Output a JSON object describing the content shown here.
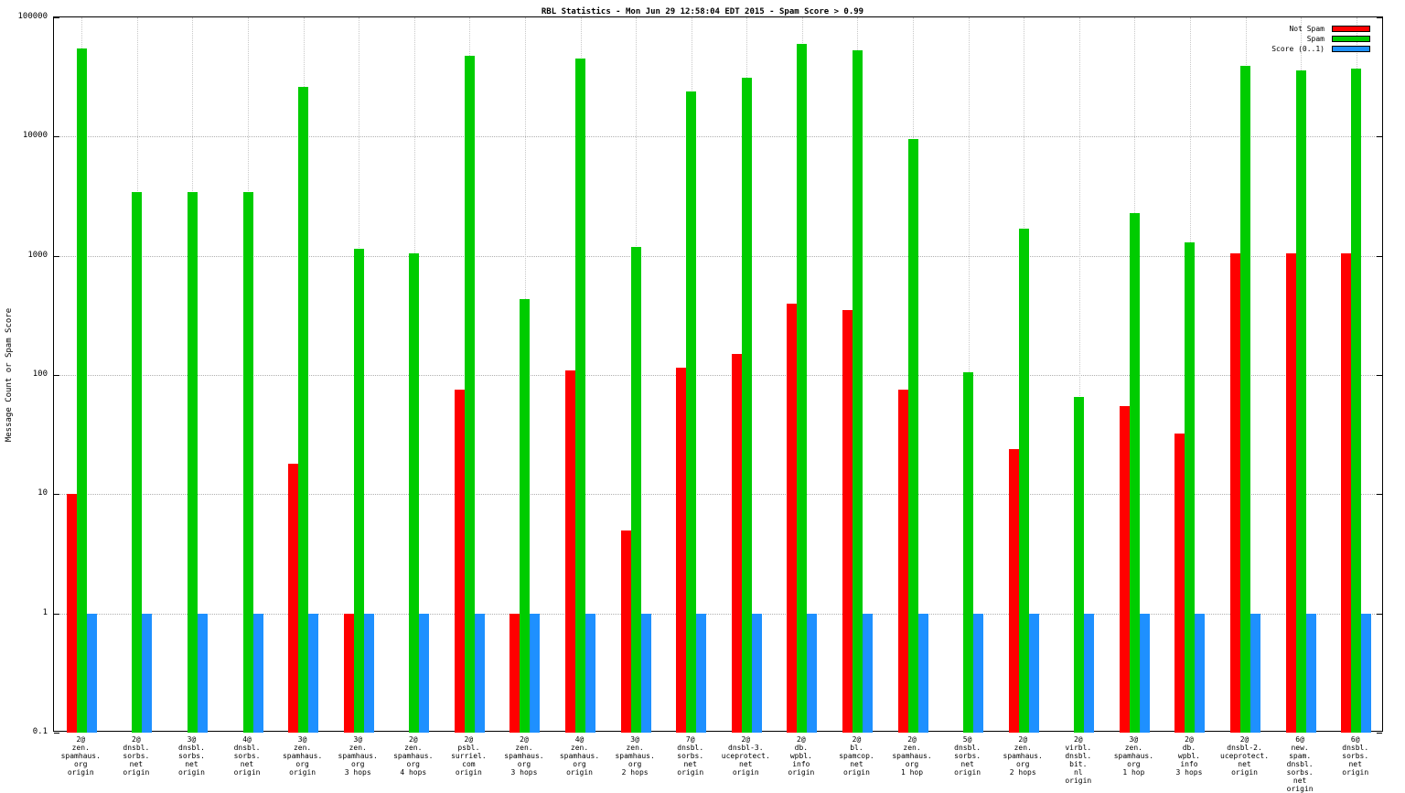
{
  "title": "RBL Statistics - Mon Jun 29 12:58:04 EDT 2015 - Spam Score > 0.99",
  "ylabel": "Message Count or Spam Score",
  "legend": [
    {
      "label": "Not Spam",
      "color": "#ff0000"
    },
    {
      "label": "Spam",
      "color": "#00cc00"
    },
    {
      "label": "Score (0..1)",
      "color": "#1e90ff"
    }
  ],
  "chart_data": {
    "type": "bar",
    "title": "RBL Statistics - Mon Jun 29 12:58:04 EDT 2015 - Spam Score > 0.99",
    "xlabel": "",
    "ylabel": "Message Count or Spam Score",
    "yscale": "log",
    "ylim": [
      0.1,
      100000
    ],
    "grid": true,
    "legend_position": "top-right",
    "yticks": [
      {
        "value": 100000,
        "label": "100000"
      },
      {
        "value": 10000,
        "label": "10000"
      },
      {
        "value": 1000,
        "label": "1000"
      },
      {
        "value": 100,
        "label": "100"
      },
      {
        "value": 10,
        "label": "10"
      },
      {
        "value": 1,
        "label": "1"
      },
      {
        "value": 0.1,
        "label": "0.1"
      }
    ],
    "categories": [
      [
        "2@",
        "zen.",
        "spamhaus.",
        "org",
        "origin"
      ],
      [
        "2@",
        "dnsbl.",
        "sorbs.",
        "net",
        "origin"
      ],
      [
        "3@",
        "dnsbl.",
        "sorbs.",
        "net",
        "origin"
      ],
      [
        "4@",
        "dnsbl.",
        "sorbs.",
        "net",
        "origin"
      ],
      [
        "3@",
        "zen.",
        "spamhaus.",
        "org",
        "origin"
      ],
      [
        "3@",
        "zen.",
        "spamhaus.",
        "org",
        "3 hops"
      ],
      [
        "2@",
        "zen.",
        "spamhaus.",
        "org",
        "4 hops"
      ],
      [
        "2@",
        "psbl.",
        "surriel.",
        "com",
        "origin"
      ],
      [
        "2@",
        "zen.",
        "spamhaus.",
        "org",
        "3 hops"
      ],
      [
        "4@",
        "zen.",
        "spamhaus.",
        "org",
        "origin"
      ],
      [
        "3@",
        "zen.",
        "spamhaus.",
        "org",
        "2 hops"
      ],
      [
        "7@",
        "dnsbl.",
        "sorbs.",
        "net",
        "origin"
      ],
      [
        "2@",
        "dnsbl-3.",
        "uceprotect.",
        "net",
        "origin"
      ],
      [
        "2@",
        "db.",
        "wpbl.",
        "info",
        "origin"
      ],
      [
        "2@",
        "bl.",
        "spamcop.",
        "net",
        "origin"
      ],
      [
        "2@",
        "zen.",
        "spamhaus.",
        "org",
        "1 hop"
      ],
      [
        "5@",
        "dnsbl.",
        "sorbs.",
        "net",
        "origin"
      ],
      [
        "2@",
        "zen.",
        "spamhaus.",
        "org",
        "2 hops"
      ],
      [
        "2@",
        "virbl.",
        "dnsbl.",
        "bit.",
        "nl",
        "origin"
      ],
      [
        "3@",
        "zen.",
        "spamhaus.",
        "org",
        "1 hop"
      ],
      [
        "2@",
        "db.",
        "wpbl.",
        "info",
        "3 hops"
      ],
      [
        "2@",
        "dnsbl-2.",
        "uceprotect.",
        "net",
        "origin"
      ],
      [
        "6@",
        "new.",
        "spam.",
        "dnsbl.",
        "sorbs.",
        "net",
        "origin"
      ],
      [
        "6@",
        "dnsbl.",
        "sorbs.",
        "net",
        "origin"
      ]
    ],
    "series": [
      {
        "name": "Not Spam",
        "color": "#ff0000",
        "values": [
          10,
          null,
          null,
          null,
          18,
          1,
          null,
          75,
          1,
          110,
          5,
          115,
          150,
          400,
          350,
          75,
          null,
          24,
          null,
          55,
          32,
          1050,
          1050,
          1050
        ]
      },
      {
        "name": "Spam",
        "color": "#00cc00",
        "values": [
          55000,
          3400,
          3400,
          3400,
          26000,
          1150,
          1050,
          48000,
          430,
          45000,
          1180,
          24000,
          31000,
          60000,
          53000,
          9500,
          105,
          1700,
          65,
          2300,
          1300,
          39000,
          36000,
          37000
        ]
      },
      {
        "name": "Score (0..1)",
        "color": "#1e90ff",
        "values": [
          1,
          1,
          1,
          1,
          1,
          1,
          1,
          1,
          1,
          1,
          1,
          1,
          1,
          1,
          1,
          1,
          1,
          1,
          1,
          1,
          1,
          1,
          1,
          1
        ]
      }
    ]
  }
}
